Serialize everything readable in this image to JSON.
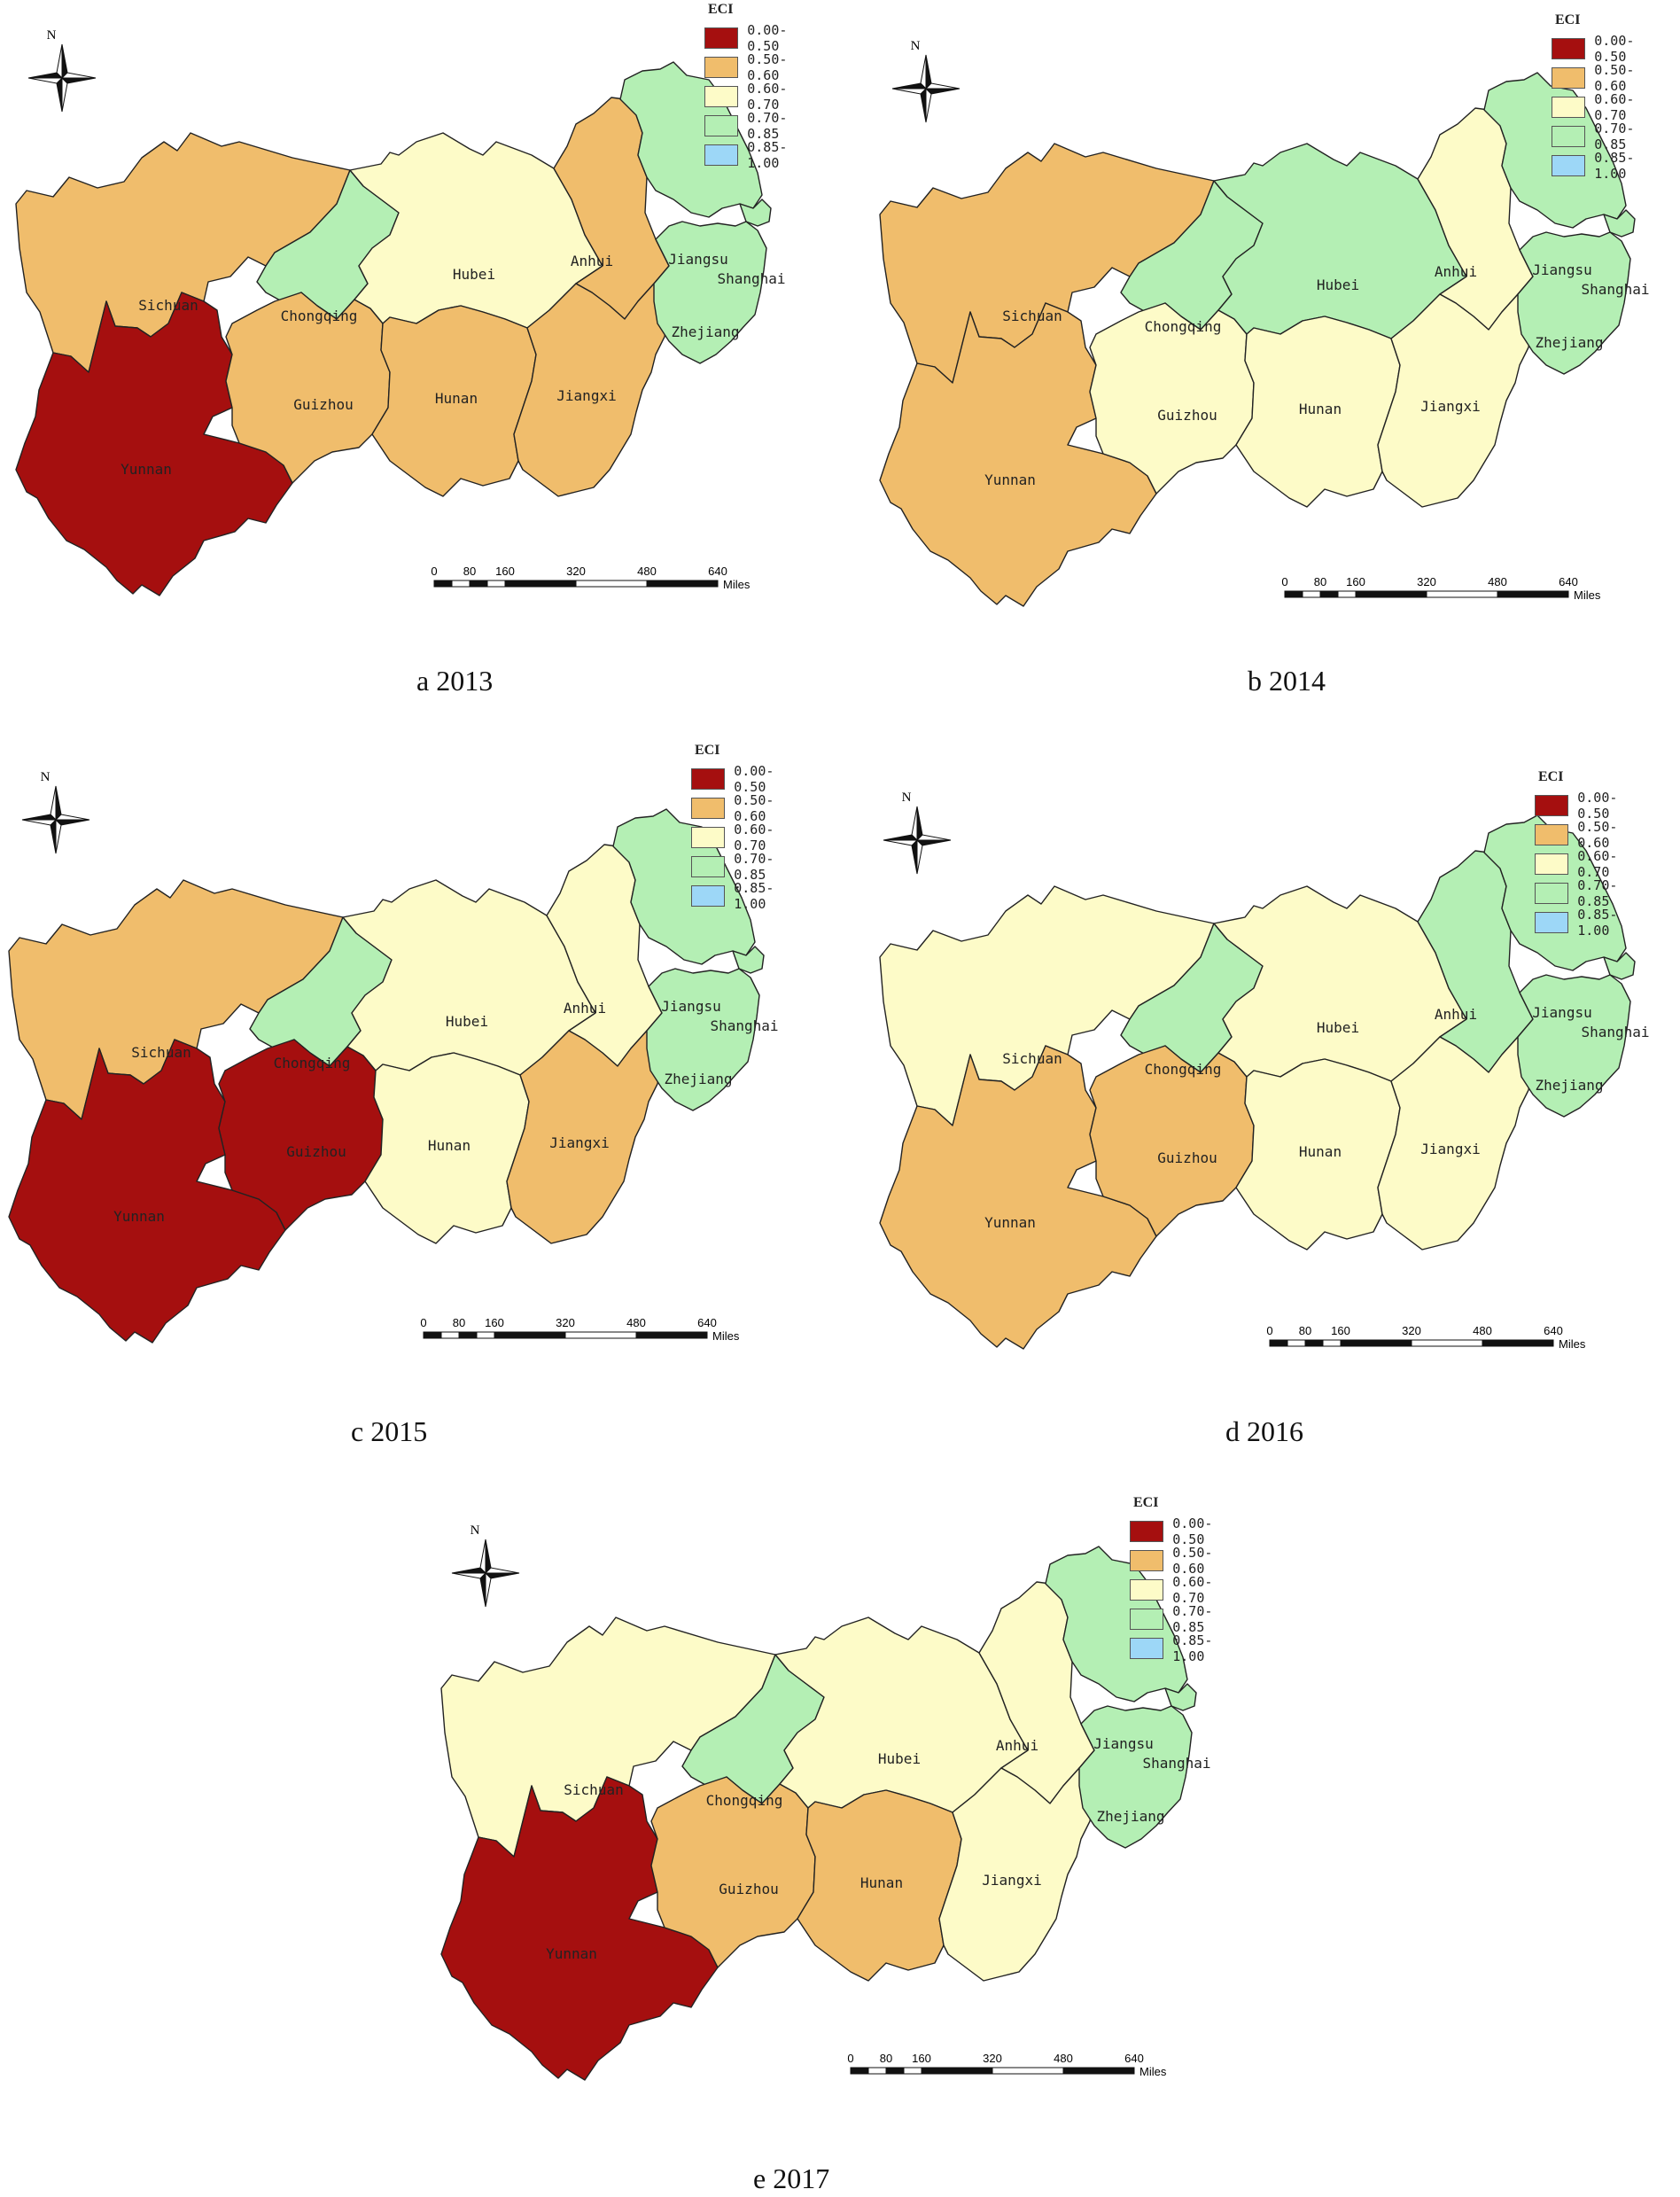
{
  "legend": {
    "title": "ECI",
    "classes": [
      {
        "label": "0.00-0.50",
        "color": "#a50f0f"
      },
      {
        "label": "0.50-0.60",
        "color": "#f0bd6c"
      },
      {
        "label": "0.60-0.70",
        "color": "#fdfbc8"
      },
      {
        "label": "0.70-0.85",
        "color": "#b4efb4"
      },
      {
        "label": "0.85-1.00",
        "color": "#9dd7f7"
      }
    ]
  },
  "compass": {
    "north_label": "N"
  },
  "scale": {
    "ticks": [
      "0",
      "80",
      "160",
      "320",
      "480",
      "640"
    ],
    "unit": "Miles"
  },
  "province_names": {
    "sichuan": "Sichuan",
    "yunnan": "Yunnan",
    "chongqing": "Chongqing",
    "guizhou": "Guizhou",
    "hubei": "Hubei",
    "hunan": "Hunan",
    "anhui": "Anhui",
    "jiangxi": "Jiangxi",
    "jiangsu": "Jiangsu",
    "shanghai": "Shanghai",
    "zhejiang": "Zhejiang"
  },
  "panels": [
    {
      "caption": "a  2013",
      "year": 2013,
      "eci_class": {
        "sichuan": 1,
        "yunnan": 0,
        "chongqing": 3,
        "guizhou": 1,
        "hubei": 2,
        "hunan": 1,
        "anhui": 1,
        "jiangxi": 1,
        "jiangsu": 3,
        "shanghai": 3,
        "zhejiang": 3
      }
    },
    {
      "caption": "b  2014",
      "year": 2014,
      "eci_class": {
        "sichuan": 1,
        "yunnan": 1,
        "chongqing": 3,
        "guizhou": 2,
        "hubei": 3,
        "hunan": 2,
        "anhui": 2,
        "jiangxi": 2,
        "jiangsu": 3,
        "shanghai": 3,
        "zhejiang": 3
      }
    },
    {
      "caption": "c  2015",
      "year": 2015,
      "eci_class": {
        "sichuan": 1,
        "yunnan": 0,
        "chongqing": 3,
        "guizhou": 0,
        "hubei": 2,
        "hunan": 2,
        "anhui": 2,
        "jiangxi": 1,
        "jiangsu": 3,
        "shanghai": 3,
        "zhejiang": 3
      }
    },
    {
      "caption": "d  2016",
      "year": 2016,
      "eci_class": {
        "sichuan": 2,
        "yunnan": 1,
        "chongqing": 3,
        "guizhou": 1,
        "hubei": 2,
        "hunan": 2,
        "anhui": 3,
        "jiangxi": 2,
        "jiangsu": 3,
        "shanghai": 3,
        "zhejiang": 3
      }
    },
    {
      "caption": "e  2017",
      "year": 2017,
      "eci_class": {
        "sichuan": 2,
        "yunnan": 0,
        "chongqing": 3,
        "guizhou": 1,
        "hubei": 2,
        "hunan": 1,
        "anhui": 2,
        "jiangxi": 2,
        "jiangsu": 3,
        "shanghai": 3,
        "zhejiang": 3
      }
    }
  ]
}
